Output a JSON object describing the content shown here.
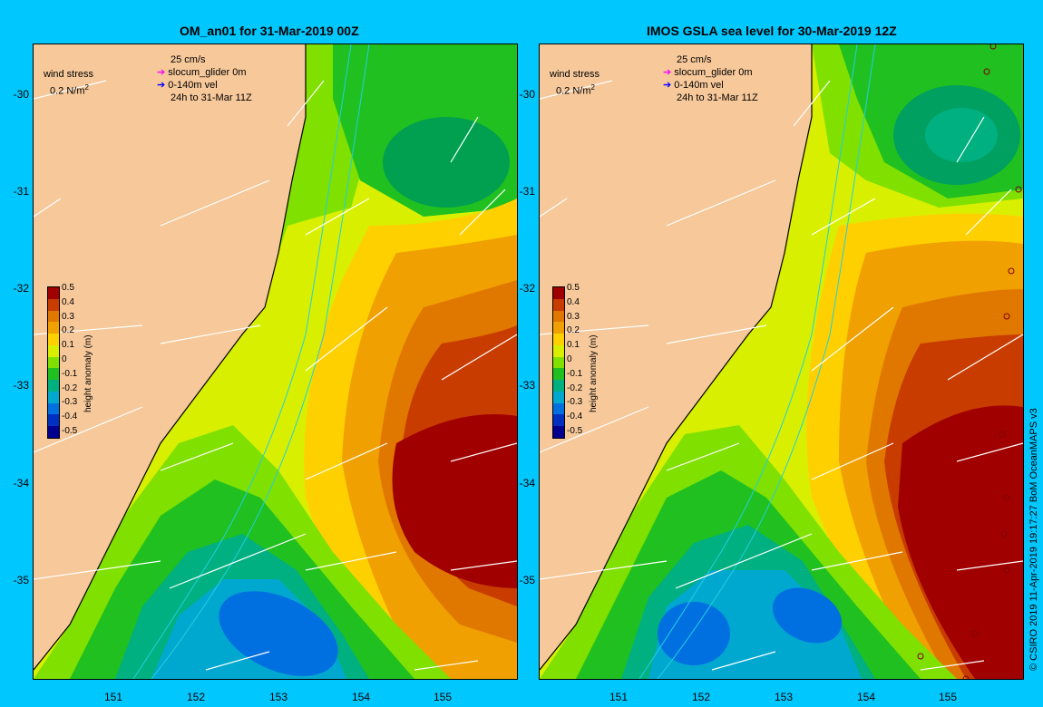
{
  "panels": [
    {
      "title": "OM_an01 for 31-Mar-2019 00Z"
    },
    {
      "title": "IMOS GSLA sea level  for 30-Mar-2019 12Z"
    }
  ],
  "legend": {
    "wind_stress": "wind stress",
    "wind_scale_value": "0.2 N/m",
    "wind_scale_exp": "2",
    "current_scale": "25 cm/s",
    "glider": "slocum_glider 0m",
    "vel": "0-140m vel",
    "track": "24h to 31-Mar 11Z",
    "glider_color": "#ff00ff",
    "vel_color": "#0000ff"
  },
  "axes": {
    "lat_labels": [
      "-30",
      "-31",
      "-32",
      "-33",
      "-34",
      "-35"
    ],
    "lon_labels": [
      "151",
      "152",
      "153",
      "154",
      "155"
    ]
  },
  "colorbar": {
    "title": "height anomaly (m)",
    "ticks": [
      "0.5",
      "0.4",
      "0.3",
      "0.2",
      "0.1",
      "0",
      "-0.1",
      "-0.2",
      "-0.3",
      "-0.4",
      "-0.5"
    ],
    "colors": [
      "#a00000",
      "#c83c00",
      "#e07800",
      "#f0a000",
      "#ffd000",
      "#d8f000",
      "#80e000",
      "#20c020",
      "#00b080",
      "#00a8d0",
      "#0070e0",
      "#0030c0",
      "#000090"
    ]
  },
  "credit": "© CSIRO 2019  11-Apr-2019 19:17:27 BoM OceanMAPS v3",
  "land_color": "#f6c89a"
}
